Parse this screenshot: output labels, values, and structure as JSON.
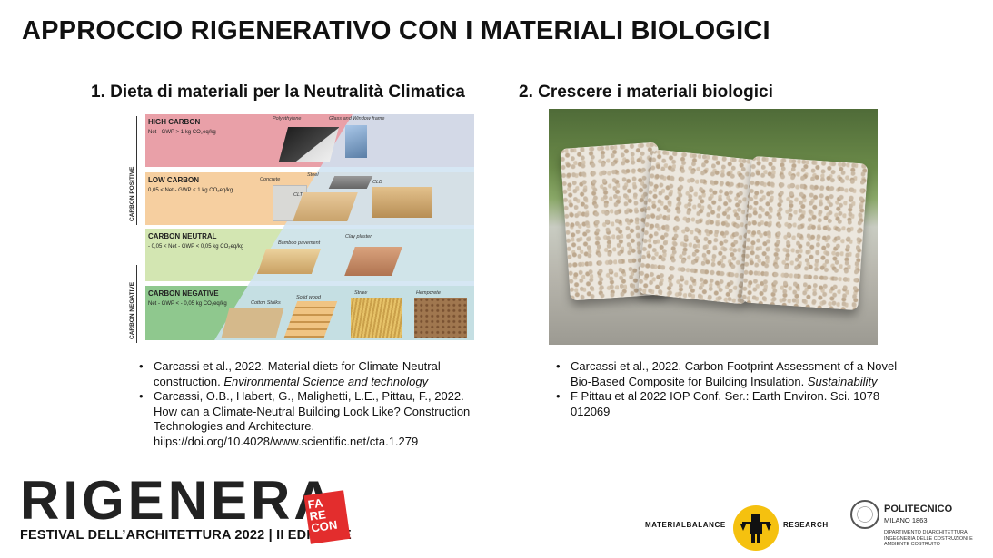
{
  "slide": {
    "title": "APPROCCIO RIGENERATIVO CON I MATERIALI BIOLOGICI"
  },
  "left": {
    "heading": "1. Dieta di materiali per la Neutralità Climatica",
    "diagram": {
      "side_labels": {
        "positive": "CARBON POSITIVE",
        "negative": "CARBON NEGATIVE"
      },
      "bands": [
        {
          "name": "HIGH CARBON",
          "rule": "Net - GWP  > 1 kg CO₂eq/kg",
          "color": "#e9a0a8"
        },
        {
          "name": "LOW CARBON",
          "rule": "0,05 < Net - GWP  < 1 kg CO₂eq/kg",
          "color": "#f6cfa0"
        },
        {
          "name": "CARBON NEUTRAL",
          "rule": "- 0,05 < Net - GWP  < 0,05 kg CO₂eq/kg",
          "color": "#d3e6b2"
        },
        {
          "name": "CARBON NEGATIVE",
          "rule": "Net - GWP  < - 0,05 kg CO₂eq/kg",
          "color": "#8fc88e"
        }
      ],
      "materials": {
        "polyethylene": "Polyethylene",
        "glass": "Glass and Window frame",
        "concrete": "Concrete",
        "steel": "Steel",
        "clt": "CLT",
        "clb": "CLB",
        "bamboo": "Bamboo pavement",
        "clay": "Clay plaster",
        "cotton": "Cotton Stalks",
        "solidwood": "Solid wood",
        "straw": "Straw",
        "hempcrete": "Hempcrete"
      },
      "accent_triangle": "#cfe3f2"
    },
    "refs": [
      {
        "text": "Carcassi et al., 2022. Material diets for Climate-Neutral construction. ",
        "italic": "Environmental Science and technology"
      },
      {
        "text": "Carcassi, O.B., Habert, G., Malighetti, L.E., Pittau, F., 2022. How can a Climate-Neutral Building Look Like? Construction Technologies and Architecture. hiips://doi.org/10.4028/www.scientific.net/cta.1.279",
        "italic": ""
      }
    ]
  },
  "right": {
    "heading": "2. Crescere i materiali biologici",
    "refs": [
      {
        "text": "Carcassi et al., 2022. Carbon Footprint Assessment of a Novel Bio-Based Composite for Building Insulation. ",
        "italic": "Sustainability"
      },
      {
        "text": "F Pittau et al 2022 IOP Conf. Ser.: Earth Environ. Sci. 1078 012069",
        "italic": ""
      }
    ]
  },
  "footer": {
    "rigenera": "RIGENERA",
    "festival": "FESTIVAL DELL’ARCHITETTURA 2022 | II EDIZIONE",
    "farecon": [
      "FA",
      "RE",
      "CON"
    ],
    "materialbalance": "MATERIALBALANCE",
    "research": "RESEARCH",
    "poli_name": "POLITECNICO",
    "poli_city": "MILANO 1863",
    "poli_dept": "DIPARTIMENTO DI ARCHITETTURA, INGEGNERIA DELLE COSTRUZIONI E AMBIENTE COSTRUITO",
    "accent_red": "#e32d2d",
    "accent_yellow": "#f5c10f"
  }
}
